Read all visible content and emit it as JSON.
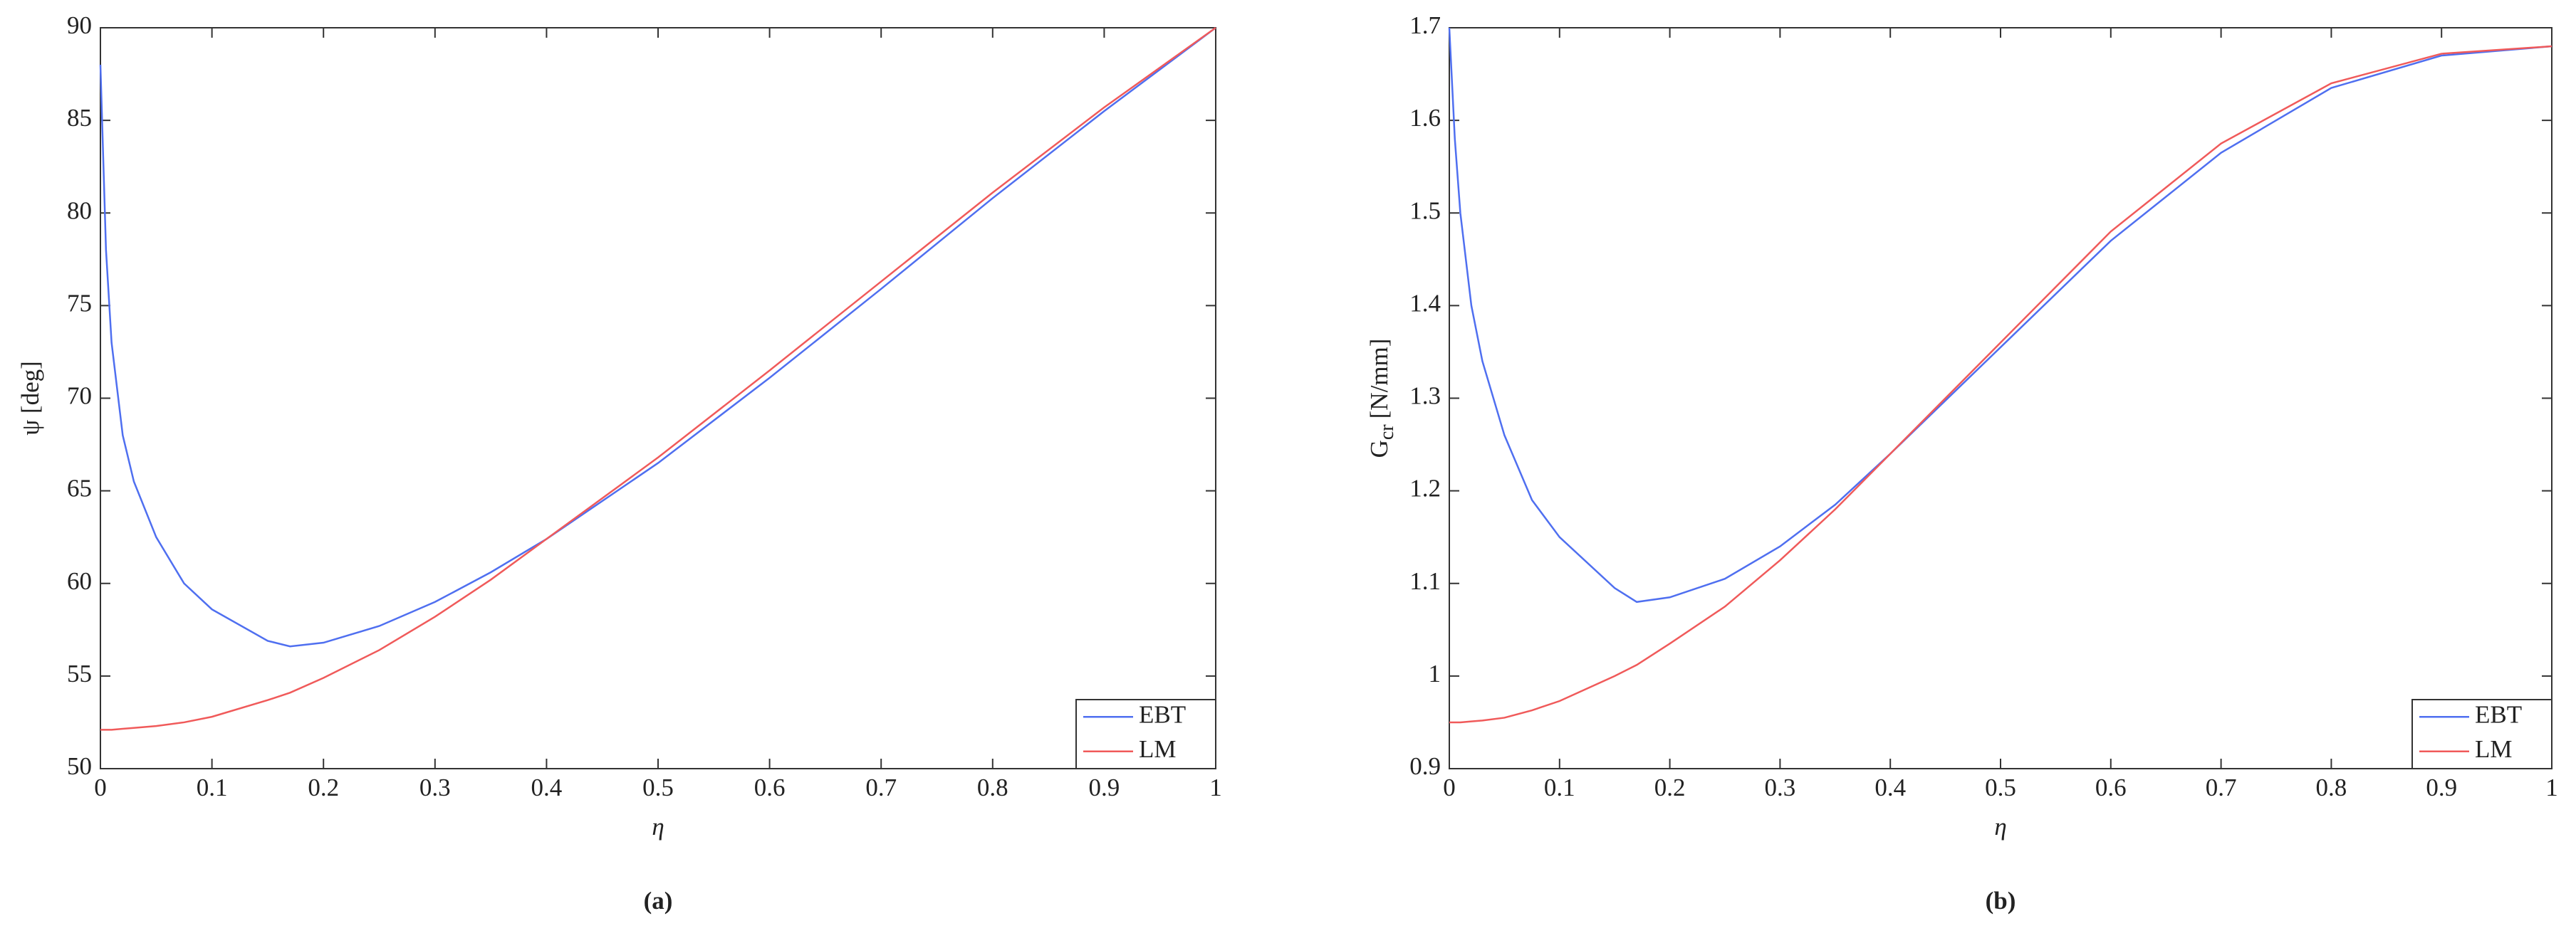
{
  "chart_data": [
    {
      "type": "line",
      "caption": "(a)",
      "xlabel": "η",
      "ylabel": "ψ [deg]",
      "x": [
        0,
        0.005,
        0.01,
        0.02,
        0.03,
        0.05,
        0.075,
        0.1,
        0.15,
        0.17,
        0.2,
        0.25,
        0.3,
        0.35,
        0.4,
        0.5,
        0.6,
        0.7,
        0.8,
        0.9,
        1
      ],
      "series": [
        {
          "name": "EBT",
          "color": "#4f6ff0",
          "values": [
            88,
            78,
            73,
            68,
            65.5,
            62.5,
            60,
            58.6,
            56.9,
            56.6,
            56.8,
            57.7,
            59.0,
            60.6,
            62.4,
            66.5,
            71.1,
            75.9,
            80.8,
            85.5,
            90
          ]
        },
        {
          "name": "LM",
          "color": "#f05a5a",
          "values": [
            52.1,
            52.1,
            52.1,
            52.15,
            52.2,
            52.3,
            52.5,
            52.8,
            53.7,
            54.1,
            54.9,
            56.4,
            58.2,
            60.2,
            62.4,
            66.8,
            71.5,
            76.3,
            81.1,
            85.7,
            90
          ]
        }
      ],
      "xlim": [
        0,
        1
      ],
      "xticks": [
        0,
        0.1,
        0.2,
        0.3,
        0.4,
        0.5,
        0.6,
        0.7,
        0.8,
        0.9,
        1
      ],
      "ylim": [
        50,
        90
      ],
      "yticks": [
        50,
        55,
        60,
        65,
        70,
        75,
        80,
        85,
        90
      ],
      "legend": "lower-right"
    },
    {
      "type": "line",
      "caption": "(b)",
      "xlabel": "η",
      "ylabel": "G",
      "ylabel_subscript": "cr",
      "ylabel_suffix": "[N/mm]",
      "x": [
        0,
        0.005,
        0.01,
        0.02,
        0.03,
        0.05,
        0.075,
        0.1,
        0.15,
        0.17,
        0.2,
        0.25,
        0.3,
        0.35,
        0.4,
        0.5,
        0.6,
        0.7,
        0.8,
        0.9,
        1
      ],
      "series": [
        {
          "name": "EBT",
          "color": "#4f6ff0",
          "values": [
            1.7,
            1.58,
            1.5,
            1.4,
            1.34,
            1.26,
            1.19,
            1.15,
            1.095,
            1.08,
            1.085,
            1.105,
            1.14,
            1.185,
            1.24,
            1.355,
            1.47,
            1.565,
            1.635,
            1.67,
            1.68
          ]
        },
        {
          "name": "LM",
          "color": "#f05a5a",
          "values": [
            0.95,
            0.95,
            0.95,
            0.951,
            0.952,
            0.955,
            0.963,
            0.973,
            1.0,
            1.012,
            1.035,
            1.075,
            1.125,
            1.18,
            1.24,
            1.36,
            1.48,
            1.575,
            1.64,
            1.672,
            1.68
          ]
        }
      ],
      "xlim": [
        0,
        1
      ],
      "xticks": [
        0,
        0.1,
        0.2,
        0.3,
        0.4,
        0.5,
        0.6,
        0.7,
        0.8,
        0.9,
        1
      ],
      "ylim": [
        0.9,
        1.7
      ],
      "yticks": [
        0.9,
        1,
        1.1,
        1.2,
        1.3,
        1.4,
        1.5,
        1.6,
        1.7
      ],
      "legend": "lower-right"
    }
  ]
}
